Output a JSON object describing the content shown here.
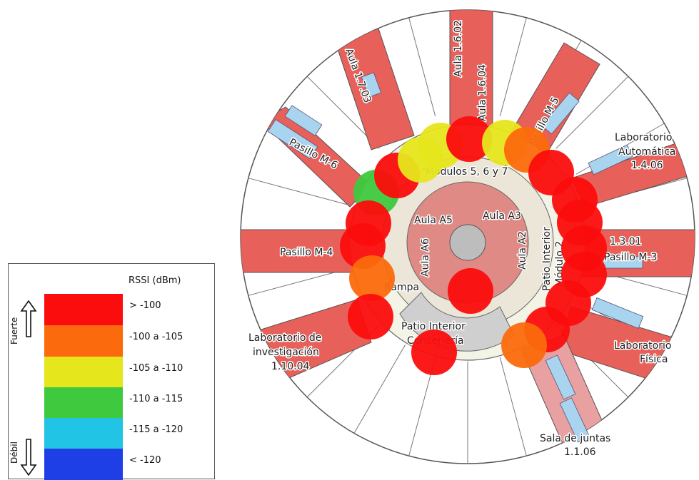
{
  "map": {
    "room_labels": {
      "aula_1_6_02": "Aula 1.6.02",
      "aula_1_6_04": "Aula 1.6.04",
      "aula_1_7_03": "Aula 1.7.03",
      "pasillo_m5": "Pasillo M-5",
      "lab_automatica_l1": "Laboratorio",
      "lab_automatica_l2": "Automática",
      "lab_automatica_l3": "1.4.06",
      "pasillo_m6": "Pasillo M-6",
      "modulos": "Módulos 5, 6 y 7",
      "aula_a5": "Aula A5",
      "aula_a3": "Aula A3",
      "aula_a6": "Aula A6",
      "aula_a2": "Aula A2",
      "patio_interior_m2_l1": "Patio Interior",
      "patio_interior_m2_l2": "Módulo 2",
      "pasillo_m4": "Pasillo M-4",
      "room_1_3_01": "1.3.01",
      "pasillo_m3": "Pasillo M-3",
      "rampa": "Rampa",
      "patio_conserjeria_l1": "Patio Interior",
      "patio_conserjeria_l2": "Conserjería",
      "lab_investigacion_l1": "Laboratorio de",
      "lab_investigacion_l2": "investigación",
      "lab_investigacion_l3": "1.10.04",
      "lab_fisica_l1": "Laboratorio",
      "lab_fisica_l2": "Física",
      "sala_juntas_l1": "Sala de juntas",
      "sala_juntas_l2": "1.1.06"
    },
    "measurements": [
      {
        "id": 1,
        "level": "red"
      },
      {
        "id": 2,
        "level": "green"
      },
      {
        "id": 3,
        "level": "red"
      },
      {
        "id": 4,
        "level": "yellow"
      },
      {
        "id": 5,
        "level": "yellow"
      },
      {
        "id": 6,
        "level": "red"
      },
      {
        "id": 7,
        "level": "yellow"
      },
      {
        "id": 8,
        "level": "orange"
      },
      {
        "id": 9,
        "level": "red"
      },
      {
        "id": 10,
        "level": "red"
      },
      {
        "id": 11,
        "level": "red"
      },
      {
        "id": 12,
        "level": "red"
      },
      {
        "id": 13,
        "level": "red"
      },
      {
        "id": 14,
        "level": "red"
      },
      {
        "id": 15,
        "level": "red"
      },
      {
        "id": 16,
        "level": "orange"
      },
      {
        "id": 17,
        "level": "red"
      },
      {
        "id": 18,
        "level": "red"
      },
      {
        "id": 19,
        "level": "orange"
      },
      {
        "id": 20,
        "level": "red"
      },
      {
        "id": 21,
        "level": "red"
      }
    ]
  },
  "legend": {
    "title": "RSSI (dBm)",
    "strong_label": "Fuerte",
    "weak_label": "Débil",
    "ranges": [
      {
        "key": "red",
        "label": "> -100",
        "color": "#fb0d0d"
      },
      {
        "key": "orange",
        "label": "-100 a -105",
        "color": "#fb6a0c"
      },
      {
        "key": "yellow",
        "label": "-105 a -110",
        "color": "#e6e61c"
      },
      {
        "key": "green",
        "label": "-110 a -115",
        "color": "#3ec93e"
      },
      {
        "key": "cyan",
        "label": "-115 a -120",
        "color": "#22c4e6"
      },
      {
        "key": "blue",
        "label": "< -120",
        "color": "#1f3fe6"
      }
    ]
  }
}
